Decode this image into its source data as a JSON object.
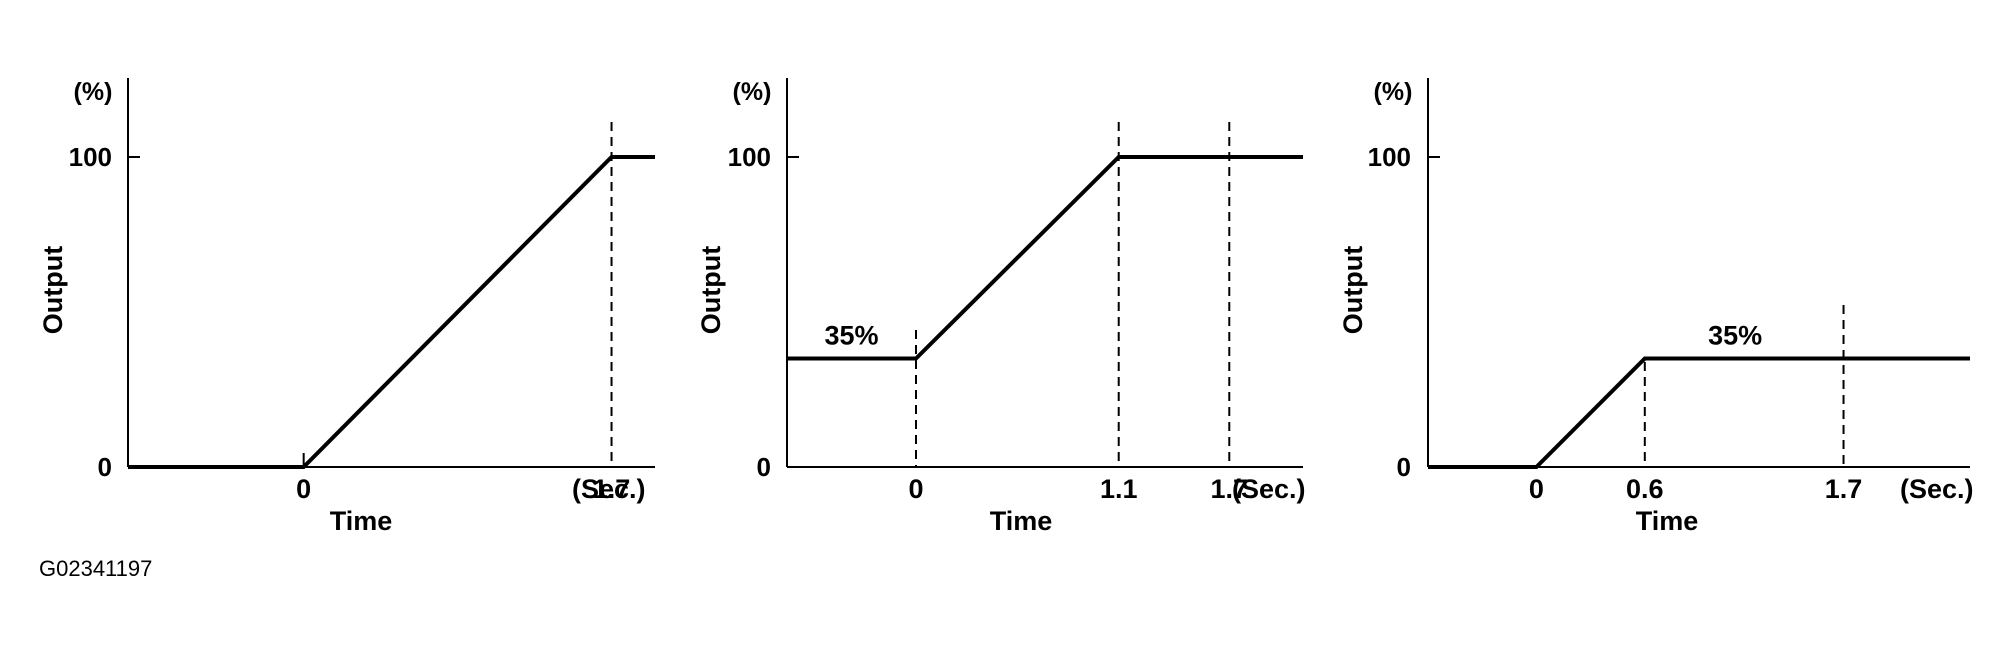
{
  "figure_code": "G02341197",
  "chart_data": [
    {
      "type": "line",
      "ylabel": "Output",
      "yunit": "(%)",
      "xlabel": "Time",
      "xunit": "(Sec.)",
      "yticks": [
        {
          "value": 0,
          "label": "0"
        },
        {
          "value": 100,
          "label": "100"
        }
      ],
      "xticks": [
        {
          "value": 0,
          "label": "0"
        },
        {
          "value": 1.7,
          "label": "1.7"
        }
      ],
      "xlim": [
        -0.97,
        1.94
      ],
      "ylim": [
        0,
        125
      ],
      "guides": [
        1.7
      ],
      "series": [
        {
          "x": [
            -0.97,
            0,
            1.7,
            1.94
          ],
          "y": [
            0,
            0,
            100,
            100
          ]
        }
      ],
      "annotations": []
    },
    {
      "type": "line",
      "ylabel": "Output",
      "yunit": "(%)",
      "xlabel": "Time",
      "xunit": "(Sec.)",
      "yticks": [
        {
          "value": 0,
          "label": "0"
        },
        {
          "value": 100,
          "label": "100"
        }
      ],
      "xticks": [
        {
          "value": 0,
          "label": "0"
        },
        {
          "value": 1.1,
          "label": "1.1"
        },
        {
          "value": 1.7,
          "label": "1.7"
        }
      ],
      "xlim": [
        -0.7,
        2.1
      ],
      "ylim": [
        0,
        125
      ],
      "guides": [
        0,
        1.1,
        1.7
      ],
      "series": [
        {
          "x": [
            -0.7,
            0,
            1.1,
            2.1
          ],
          "y": [
            35,
            35,
            100,
            100
          ]
        }
      ],
      "annotations": [
        {
          "text": "35%",
          "x": -0.35,
          "y": 35
        }
      ]
    },
    {
      "type": "line",
      "ylabel": "Output",
      "yunit": "(%)",
      "xlabel": "Time",
      "xunit": "(Sec.)",
      "yticks": [
        {
          "value": 0,
          "label": "0"
        },
        {
          "value": 100,
          "label": "100"
        }
      ],
      "xticks": [
        {
          "value": 0,
          "label": "0"
        },
        {
          "value": 0.6,
          "label": "0.6"
        },
        {
          "value": 1.7,
          "label": "1.7"
        }
      ],
      "xlim": [
        -0.6,
        2.4
      ],
      "ylim": [
        0,
        125
      ],
      "guides": [
        0.6,
        1.7
      ],
      "series": [
        {
          "x": [
            -0.6,
            0,
            0.6,
            2.4
          ],
          "y": [
            0,
            0,
            35,
            35
          ]
        }
      ],
      "annotations": [
        {
          "text": "35%",
          "x": 1.1,
          "y": 35
        }
      ]
    }
  ]
}
